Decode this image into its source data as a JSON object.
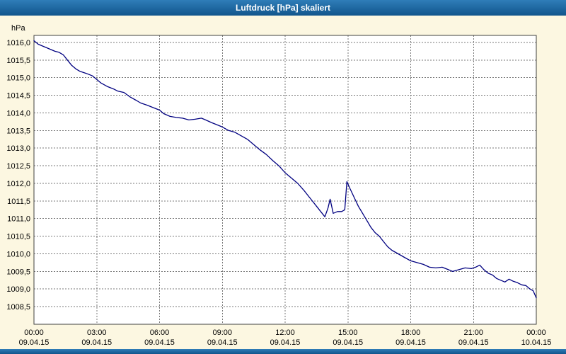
{
  "title": "Luftdruck [hPa] skaliert",
  "chart_data": {
    "type": "line",
    "title": "Luftdruck [hPa] skaliert",
    "ylabel": "hPa",
    "xlabel": "",
    "ylim": [
      1008.0,
      1016.2
    ],
    "xlim": [
      0,
      24
    ],
    "grid": "dashed",
    "legend": "none",
    "line_color": "#000080",
    "grid_color": "#7a7a7a",
    "background_color": "#fcf7e1",
    "plot_background_color": "#ffffff",
    "titlebar_color": "#1a67a5",
    "yticks": [
      {
        "value": 1016.0,
        "label": "1016,0"
      },
      {
        "value": 1015.5,
        "label": "1015,5"
      },
      {
        "value": 1015.0,
        "label": "1015,0"
      },
      {
        "value": 1014.5,
        "label": "1014,5"
      },
      {
        "value": 1014.0,
        "label": "1014,0"
      },
      {
        "value": 1013.5,
        "label": "1013,5"
      },
      {
        "value": 1013.0,
        "label": "1013,0"
      },
      {
        "value": 1012.5,
        "label": "1012,5"
      },
      {
        "value": 1012.0,
        "label": "1012,0"
      },
      {
        "value": 1011.5,
        "label": "1011,5"
      },
      {
        "value": 1011.0,
        "label": "1011,0"
      },
      {
        "value": 1010.5,
        "label": "1010,5"
      },
      {
        "value": 1010.0,
        "label": "1010,0"
      },
      {
        "value": 1009.5,
        "label": "1009,5"
      },
      {
        "value": 1009.0,
        "label": "1009,0"
      },
      {
        "value": 1008.5,
        "label": "1008,5"
      }
    ],
    "xticks": [
      {
        "hour": 0,
        "time": "00:00",
        "date": "09.04.15"
      },
      {
        "hour": 3,
        "time": "03:00",
        "date": "09.04.15"
      },
      {
        "hour": 6,
        "time": "06:00",
        "date": "09.04.15"
      },
      {
        "hour": 9,
        "time": "09:00",
        "date": "09.04.15"
      },
      {
        "hour": 12,
        "time": "12:00",
        "date": "09.04.15"
      },
      {
        "hour": 15,
        "time": "15:00",
        "date": "09.04.15"
      },
      {
        "hour": 18,
        "time": "18:00",
        "date": "09.04.15"
      },
      {
        "hour": 21,
        "time": "21:00",
        "date": "09.04.15"
      },
      {
        "hour": 24,
        "time": "00:00",
        "date": "10.04.15"
      }
    ],
    "series": [
      {
        "name": "Luftdruck",
        "points": [
          [
            0,
            1016.05
          ],
          [
            0.2,
            1015.95
          ],
          [
            0.4,
            1015.9
          ],
          [
            0.6,
            1015.85
          ],
          [
            0.8,
            1015.8
          ],
          [
            1,
            1015.75
          ],
          [
            1.2,
            1015.72
          ],
          [
            1.4,
            1015.65
          ],
          [
            1.6,
            1015.5
          ],
          [
            1.8,
            1015.35
          ],
          [
            2,
            1015.25
          ],
          [
            2.2,
            1015.18
          ],
          [
            2.5,
            1015.12
          ],
          [
            2.8,
            1015.05
          ],
          [
            3,
            1014.95
          ],
          [
            3.2,
            1014.85
          ],
          [
            3.5,
            1014.75
          ],
          [
            3.8,
            1014.68
          ],
          [
            4,
            1014.62
          ],
          [
            4.3,
            1014.58
          ],
          [
            4.6,
            1014.45
          ],
          [
            4.9,
            1014.35
          ],
          [
            5.1,
            1014.28
          ],
          [
            5.4,
            1014.22
          ],
          [
            5.7,
            1014.15
          ],
          [
            6,
            1014.08
          ],
          [
            6.2,
            1013.98
          ],
          [
            6.5,
            1013.9
          ],
          [
            6.8,
            1013.87
          ],
          [
            7.1,
            1013.85
          ],
          [
            7.4,
            1013.8
          ],
          [
            7.7,
            1013.82
          ],
          [
            8,
            1013.85
          ],
          [
            8.2,
            1013.8
          ],
          [
            8.5,
            1013.72
          ],
          [
            8.8,
            1013.65
          ],
          [
            9,
            1013.6
          ],
          [
            9.3,
            1013.5
          ],
          [
            9.6,
            1013.45
          ],
          [
            9.9,
            1013.35
          ],
          [
            10.2,
            1013.25
          ],
          [
            10.5,
            1013.1
          ],
          [
            10.8,
            1012.95
          ],
          [
            11.1,
            1012.82
          ],
          [
            11.4,
            1012.65
          ],
          [
            11.7,
            1012.5
          ],
          [
            12,
            1012.3
          ],
          [
            12.3,
            1012.15
          ],
          [
            12.6,
            1012.0
          ],
          [
            12.9,
            1011.8
          ],
          [
            13.1,
            1011.65
          ],
          [
            13.3,
            1011.5
          ],
          [
            13.5,
            1011.35
          ],
          [
            13.7,
            1011.2
          ],
          [
            13.9,
            1011.05
          ],
          [
            14.05,
            1011.3
          ],
          [
            14.15,
            1011.55
          ],
          [
            14.3,
            1011.15
          ],
          [
            14.5,
            1011.2
          ],
          [
            14.7,
            1011.2
          ],
          [
            14.85,
            1011.25
          ],
          [
            14.95,
            1012.05
          ],
          [
            15.1,
            1011.85
          ],
          [
            15.3,
            1011.6
          ],
          [
            15.5,
            1011.35
          ],
          [
            15.7,
            1011.15
          ],
          [
            15.9,
            1010.95
          ],
          [
            16.1,
            1010.75
          ],
          [
            16.3,
            1010.6
          ],
          [
            16.5,
            1010.5
          ],
          [
            16.7,
            1010.35
          ],
          [
            16.9,
            1010.2
          ],
          [
            17.1,
            1010.1
          ],
          [
            17.4,
            1010.0
          ],
          [
            17.7,
            1009.9
          ],
          [
            18,
            1009.8
          ],
          [
            18.3,
            1009.75
          ],
          [
            18.6,
            1009.7
          ],
          [
            18.9,
            1009.62
          ],
          [
            19.2,
            1009.6
          ],
          [
            19.5,
            1009.62
          ],
          [
            19.8,
            1009.55
          ],
          [
            20,
            1009.5
          ],
          [
            20.3,
            1009.55
          ],
          [
            20.6,
            1009.6
          ],
          [
            20.9,
            1009.58
          ],
          [
            21.1,
            1009.62
          ],
          [
            21.3,
            1009.68
          ],
          [
            21.5,
            1009.55
          ],
          [
            21.7,
            1009.45
          ],
          [
            21.9,
            1009.4
          ],
          [
            22.1,
            1009.3
          ],
          [
            22.3,
            1009.25
          ],
          [
            22.5,
            1009.2
          ],
          [
            22.7,
            1009.28
          ],
          [
            22.9,
            1009.22
          ],
          [
            23.1,
            1009.18
          ],
          [
            23.3,
            1009.12
          ],
          [
            23.5,
            1009.1
          ],
          [
            23.7,
            1009.0
          ],
          [
            23.85,
            1008.95
          ],
          [
            24,
            1008.75
          ]
        ]
      }
    ]
  }
}
